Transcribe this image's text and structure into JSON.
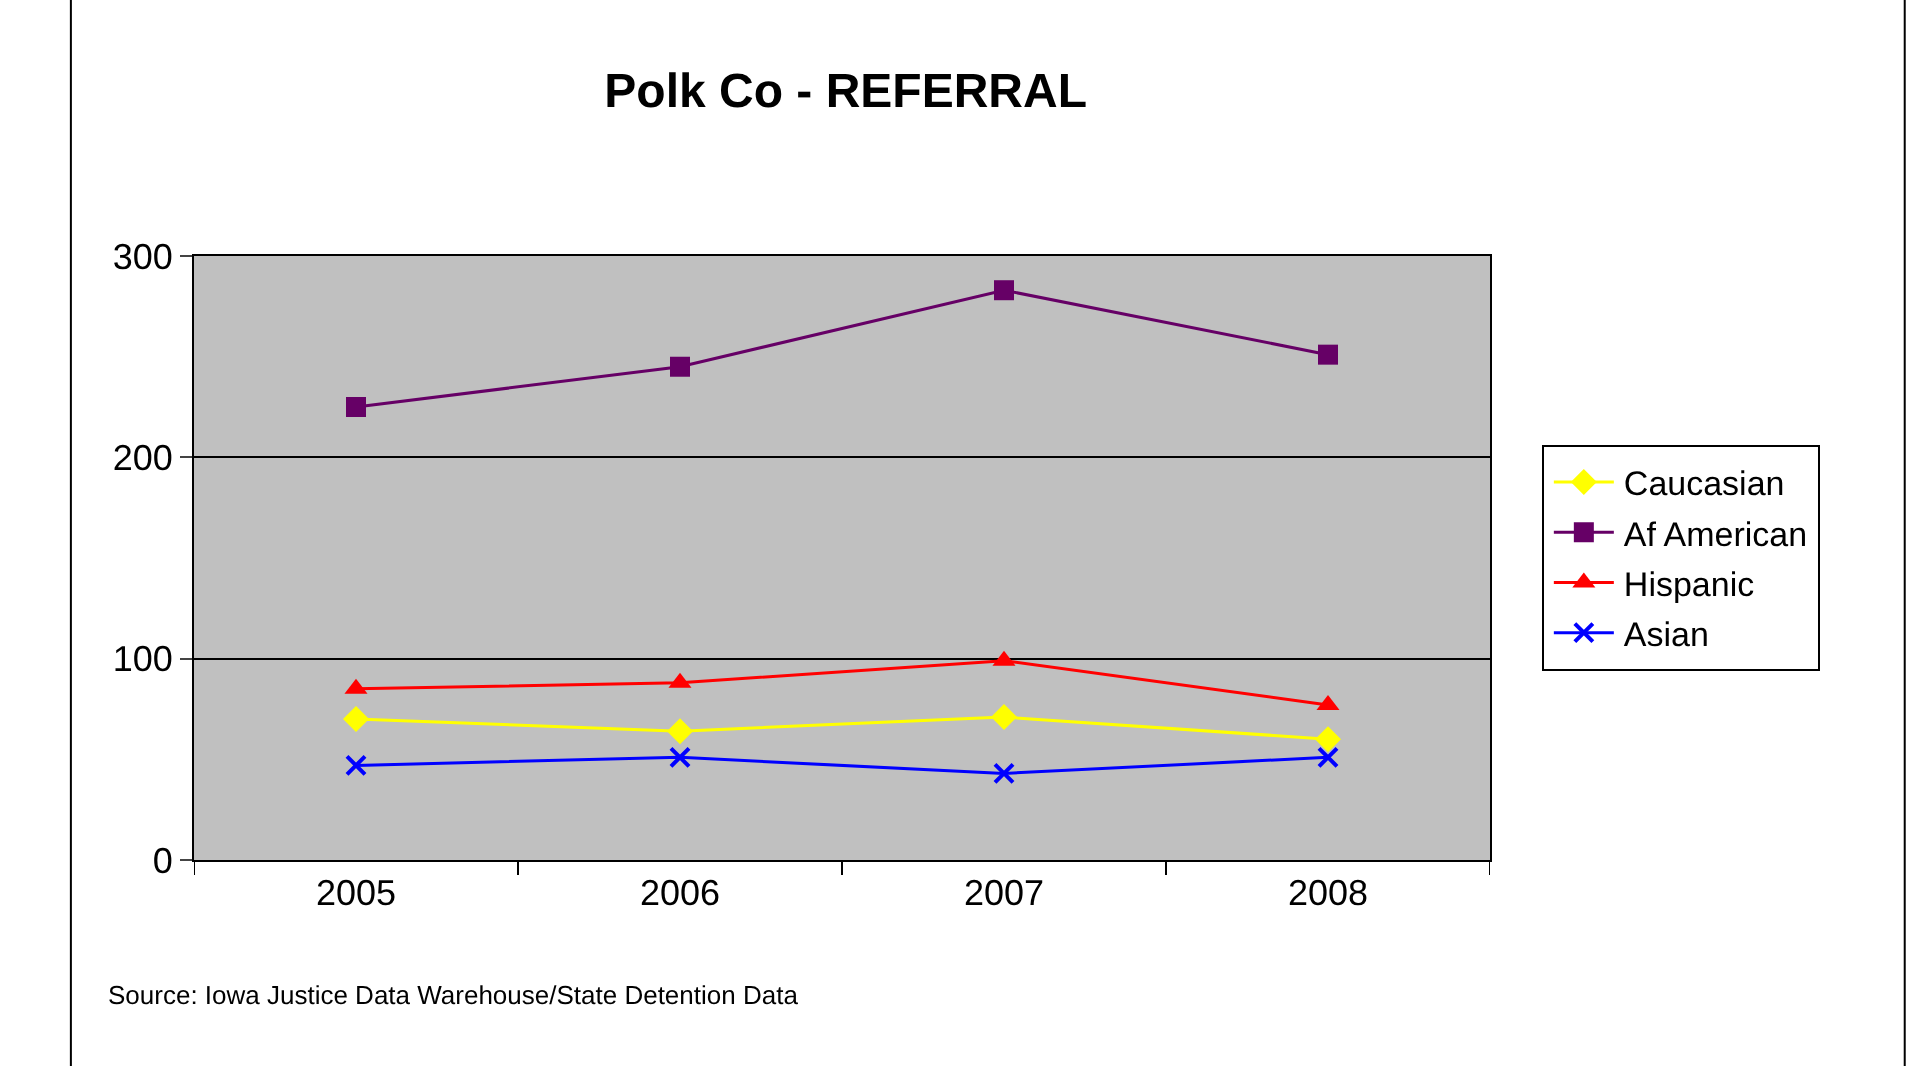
{
  "chart_data": {
    "type": "line",
    "title": "Polk Co - REFERRAL",
    "categories": [
      "2005",
      "2006",
      "2007",
      "2008"
    ],
    "series": [
      {
        "name": "Caucasian",
        "color": "#ffff00",
        "marker": "diamond",
        "values": [
          70,
          64,
          71,
          60
        ]
      },
      {
        "name": "Af American",
        "color": "#660066",
        "marker": "square",
        "values": [
          225,
          245,
          283,
          251
        ]
      },
      {
        "name": "Hispanic",
        "color": "#ff0000",
        "marker": "triangle",
        "values": [
          85,
          88,
          99,
          77
        ]
      },
      {
        "name": "Asian",
        "color": "#0000ff",
        "marker": "cross",
        "values": [
          47,
          51,
          43,
          51
        ]
      }
    ],
    "ylim": [
      0,
      300
    ],
    "yticks": [
      0,
      100,
      200,
      300
    ],
    "grid": "y",
    "legend": "right",
    "annotations": [
      "Source: Iowa Justice Data Warehouse/State Detention Data"
    ]
  }
}
